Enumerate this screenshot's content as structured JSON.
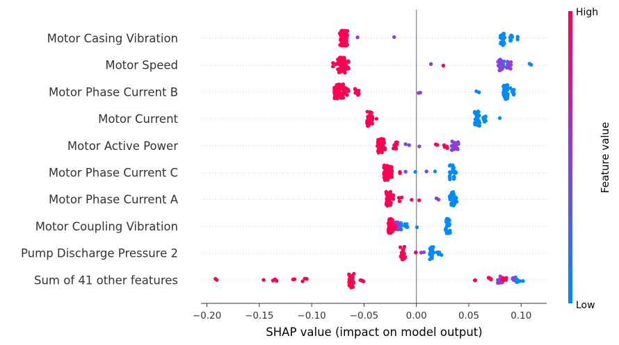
{
  "chart_data": {
    "type": "scatter",
    "subtype": "shap-beeswarm",
    "xlabel": "SHAP value (impact on model output)",
    "xlim": [
      -0.205,
      0.125
    ],
    "xticks": [
      -0.2,
      -0.15,
      -0.1,
      -0.05,
      0.0,
      0.05,
      0.1
    ],
    "xtick_labels": [
      "−0.20",
      "−0.15",
      "−0.10",
      "−0.05",
      "0.00",
      "0.05",
      "0.10"
    ],
    "colorbar": {
      "label": "Feature value",
      "high_label": "High",
      "low_label": "Low",
      "high_color": "#ff0052",
      "low_color": "#008bfb"
    },
    "zero_line": true,
    "features": [
      {
        "name": "Motor Casing Vibration",
        "high": [
          [
            -0.07,
            44
          ],
          [
            -0.068,
            40
          ],
          [
            -0.069,
            30
          ],
          [
            -0.071,
            20
          ],
          [
            -0.069,
            18
          ]
        ],
        "mid": [
          [
            -0.055,
            1
          ],
          [
            -0.022,
            1
          ]
        ],
        "low": [
          [
            0.082,
            20
          ],
          [
            0.09,
            8
          ],
          [
            0.097,
            2
          ]
        ]
      },
      {
        "name": "Motor Speed",
        "high": [
          [
            -0.078,
            4
          ],
          [
            -0.073,
            30
          ],
          [
            -0.07,
            30
          ],
          [
            -0.067,
            10
          ],
          [
            0.025,
            1
          ]
        ],
        "mid": [
          [
            0.012,
            1
          ],
          [
            0.08,
            16
          ],
          [
            0.088,
            10
          ]
        ],
        "low": [
          [
            0.082,
            12
          ],
          [
            0.11,
            2
          ]
        ]
      },
      {
        "name": "Motor Phase Current B",
        "high": [
          [
            -0.076,
            34
          ],
          [
            -0.071,
            26
          ],
          [
            -0.067,
            10
          ],
          [
            -0.057,
            8
          ]
        ],
        "mid": [
          [
            0.002,
            2
          ]
        ],
        "low": [
          [
            0.058,
            2
          ],
          [
            0.085,
            34
          ],
          [
            0.091,
            10
          ]
        ]
      },
      {
        "name": "Motor Current",
        "high": [
          [
            -0.045,
            22
          ],
          [
            -0.044,
            20
          ],
          [
            -0.04,
            2
          ]
        ],
        "mid": [],
        "low": [
          [
            0.058,
            30
          ],
          [
            0.064,
            8
          ],
          [
            0.08,
            1
          ]
        ]
      },
      {
        "name": "Motor Active Power",
        "high": [
          [
            -0.035,
            38
          ],
          [
            -0.032,
            18
          ],
          [
            -0.02,
            8
          ],
          [
            0.018,
            2
          ],
          [
            0.028,
            6
          ]
        ],
        "mid": [
          [
            -0.009,
            2
          ],
          [
            0.005,
            1
          ],
          [
            0.036,
            14
          ],
          [
            0.039,
            10
          ]
        ],
        "low": []
      },
      {
        "name": "Motor Phase Current C",
        "high": [
          [
            -0.029,
            42
          ],
          [
            -0.025,
            16
          ],
          [
            -0.017,
            2
          ]
        ],
        "mid": [
          [
            -0.011,
            1
          ],
          [
            0.008,
            1
          ]
        ],
        "low": [
          [
            -0.001,
            1
          ],
          [
            0.018,
            1
          ],
          [
            0.034,
            22
          ],
          [
            0.037,
            8
          ]
        ]
      },
      {
        "name": "Motor Phase Current A",
        "high": [
          [
            -0.027,
            34
          ],
          [
            -0.024,
            12
          ],
          [
            -0.015,
            4
          ],
          [
            -0.003,
            1
          ],
          [
            0.002,
            1
          ]
        ],
        "mid": [
          [
            0.02,
            2
          ]
        ],
        "low": [
          [
            0.034,
            26
          ],
          [
            0.037,
            10
          ]
        ]
      },
      {
        "name": "Motor Coupling Vibration",
        "high": [
          [
            -0.025,
            26
          ],
          [
            -0.022,
            8
          ]
        ],
        "mid": [
          [
            -0.018,
            10
          ]
        ],
        "low": [
          [
            -0.016,
            8
          ],
          [
            -0.01,
            6
          ],
          [
            -0.001,
            1
          ],
          [
            0.03,
            22
          ]
        ]
      },
      {
        "name": "Pump Discharge Pressure 2",
        "high": [
          [
            -0.013,
            20
          ],
          [
            0.001,
            2
          ]
        ],
        "mid": [
          [
            0.006,
            2
          ]
        ],
        "low": [
          [
            0.015,
            18
          ],
          [
            0.022,
            4
          ]
        ]
      },
      {
        "name": "Sum of 41 other features",
        "high": [
          [
            -0.19,
            2
          ],
          [
            -0.147,
            1
          ],
          [
            -0.135,
            4
          ],
          [
            -0.116,
            2
          ],
          [
            -0.107,
            4
          ],
          [
            -0.062,
            34
          ],
          [
            -0.052,
            4
          ],
          [
            0.058,
            2
          ],
          [
            0.07,
            6
          ],
          [
            0.084,
            6
          ]
        ],
        "mid": [
          [
            0.08,
            10
          ],
          [
            0.092,
            4
          ]
        ],
        "low": [
          [
            0.095,
            8
          ],
          [
            0.1,
            2
          ]
        ]
      }
    ]
  }
}
